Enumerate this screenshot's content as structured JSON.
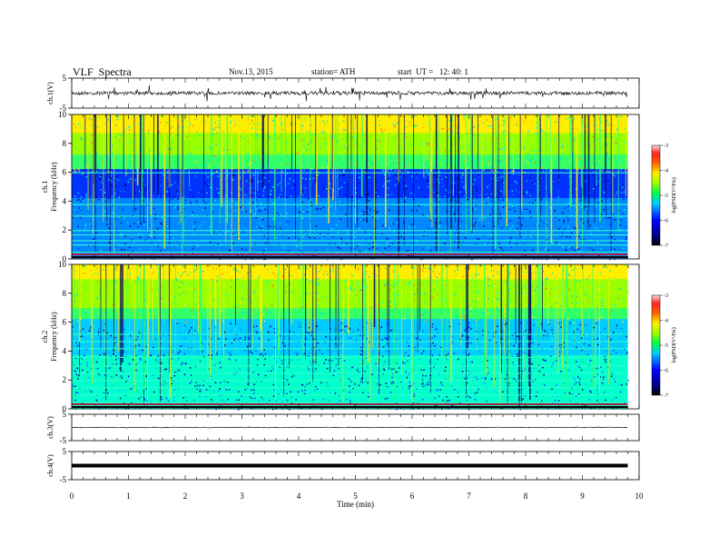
{
  "header": {
    "title": "VLF  Spectra",
    "date": "Nov.13, 2015",
    "station": "station= ATH",
    "start": "start  UT =   12: 40: 1"
  },
  "chart_data": [
    {
      "type": "line",
      "ylabel": "ch.1(V)",
      "ylim": [
        -5,
        5
      ],
      "yticks": [
        "5",
        "-5"
      ],
      "x_range": [
        0,
        9.8
      ],
      "description_level": 0.0
    },
    {
      "type": "heatmap",
      "ylabel": "ch.1\nFrequency (kHz)",
      "ylim": [
        0,
        10
      ],
      "yticks": [
        "0",
        "2",
        "4",
        "6",
        "8",
        "10"
      ],
      "colorbar": {
        "label": "log(PSD(V²/Hz)",
        "range": [
          -7,
          -3
        ],
        "ticks": [
          "-3",
          "-4",
          "-5",
          "-6",
          "-7"
        ]
      }
    },
    {
      "type": "heatmap",
      "ylabel": "ch.2\nFrequency (kHz)",
      "ylim": [
        0,
        10
      ],
      "yticks": [
        "0",
        "2",
        "4",
        "6",
        "8",
        "10"
      ],
      "colorbar": {
        "label": "log(PSD(V²/Hz)",
        "range": [
          -7,
          -3
        ],
        "ticks": [
          "-3",
          "-4",
          "-5",
          "-6",
          "-7"
        ]
      }
    },
    {
      "type": "line",
      "ylabel": "ch.3(V)",
      "ylim": [
        -5,
        5
      ],
      "yticks": [
        "5",
        "-5"
      ],
      "level": 0.0
    },
    {
      "type": "line",
      "ylabel": "ch.4(V)",
      "ylim": [
        -5,
        5
      ],
      "yticks": [
        "5",
        "-5"
      ],
      "level": 0.0
    }
  ],
  "x_axis": {
    "label": "Time  (min)",
    "xlim": [
      0,
      10
    ],
    "ticks": [
      "0",
      "1",
      "2",
      "3",
      "4",
      "5",
      "6",
      "7",
      "8",
      "9",
      "10"
    ]
  }
}
